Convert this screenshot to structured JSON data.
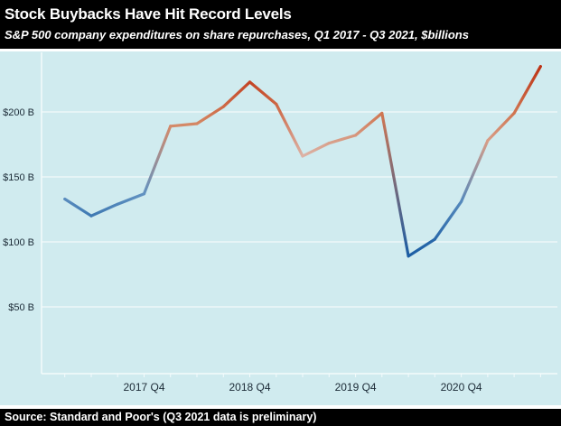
{
  "header": {
    "title": "Stock Buybacks Have Hit Record Levels",
    "subtitle": "S&P 500 company expenditures on share repurchases, Q1 2017 - Q3 2021, $billions"
  },
  "footer": {
    "source": "Source: Standard and Poor's (Q3 2021 data is preliminary)"
  },
  "chart_data": {
    "type": "line",
    "title": "Stock Buybacks Have Hit Record Levels",
    "subtitle": "S&P 500 company expenditures on share repurchases, Q1 2017 - Q3 2021, $billions",
    "series_name": "S&P 500 share repurchases ($billions)",
    "x": [
      "2017 Q1",
      "2017 Q2",
      "2017 Q3",
      "2017 Q4",
      "2018 Q1",
      "2018 Q2",
      "2018 Q3",
      "2018 Q4",
      "2019 Q1",
      "2019 Q2",
      "2019 Q3",
      "2019 Q4",
      "2020 Q1",
      "2020 Q2",
      "2020 Q3",
      "2020 Q4",
      "2021 Q1",
      "2021 Q2",
      "2021 Q3"
    ],
    "values": [
      133,
      120,
      129,
      137,
      189,
      191,
      204,
      223,
      206,
      166,
      176,
      182,
      199,
      89,
      102,
      131,
      178,
      199,
      235
    ],
    "point_colors": [
      "#5a8cbe",
      "#3e79b2",
      "#5186ba",
      "#6292c1",
      "#d48a6a",
      "#d48764",
      "#ce6a47",
      "#c34425",
      "#cd6643",
      "#dcb2a5",
      "#d8a18c",
      "#d6967d",
      "#d07652",
      "#1b5da4",
      "#2a69aa",
      "#5589bc",
      "#d89d87",
      "#d07652",
      "#bd3214"
    ],
    "ytick_values": [
      50,
      100,
      150,
      200
    ],
    "ytick_labels": [
      "$50 B",
      "$100 B",
      "$150 B",
      "$200 B"
    ],
    "xtick_indices": [
      3,
      7,
      11,
      15
    ],
    "xtick_labels": [
      "2017 Q4",
      "2018 Q4",
      "2019 Q4",
      "2020 Q4"
    ],
    "ylim": [
      0,
      246
    ],
    "grid": true,
    "legend": "none",
    "colors": {
      "plot_background": "#d0ebef",
      "gridline": "#edf7f8",
      "axis_line": "#f4fbfc",
      "tick_label": "#1b2a36",
      "header_background": "#000000",
      "header_text": "#ffffff",
      "line_low": "#1b5da4",
      "line_mid": "#dcb2a5",
      "line_high": "#bd3214"
    }
  }
}
